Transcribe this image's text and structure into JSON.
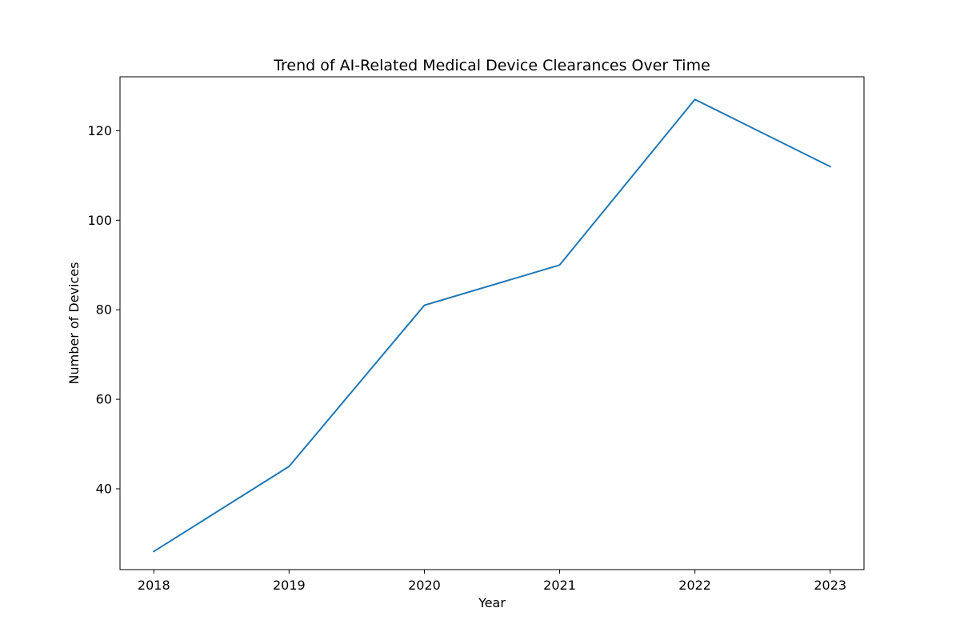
{
  "chart_data": {
    "type": "line",
    "title": "Trend of AI-Related Medical Device Clearances Over Time",
    "xlabel": "Year",
    "ylabel": "Number of Devices",
    "x": [
      2018,
      2019,
      2020,
      2021,
      2022,
      2023
    ],
    "series": [
      {
        "values": [
          26,
          45,
          81,
          90,
          127,
          112
        ]
      }
    ],
    "xticks": [
      "2018",
      "2019",
      "2020",
      "2021",
      "2022",
      "2023"
    ],
    "yticks": [
      "40",
      "60",
      "80",
      "100",
      "120"
    ],
    "ylim": [
      21.95,
      132.05
    ],
    "xlim": [
      2017.75,
      2023.25
    ],
    "grid": false,
    "legend": "none",
    "line_color": "#1f77b4"
  }
}
